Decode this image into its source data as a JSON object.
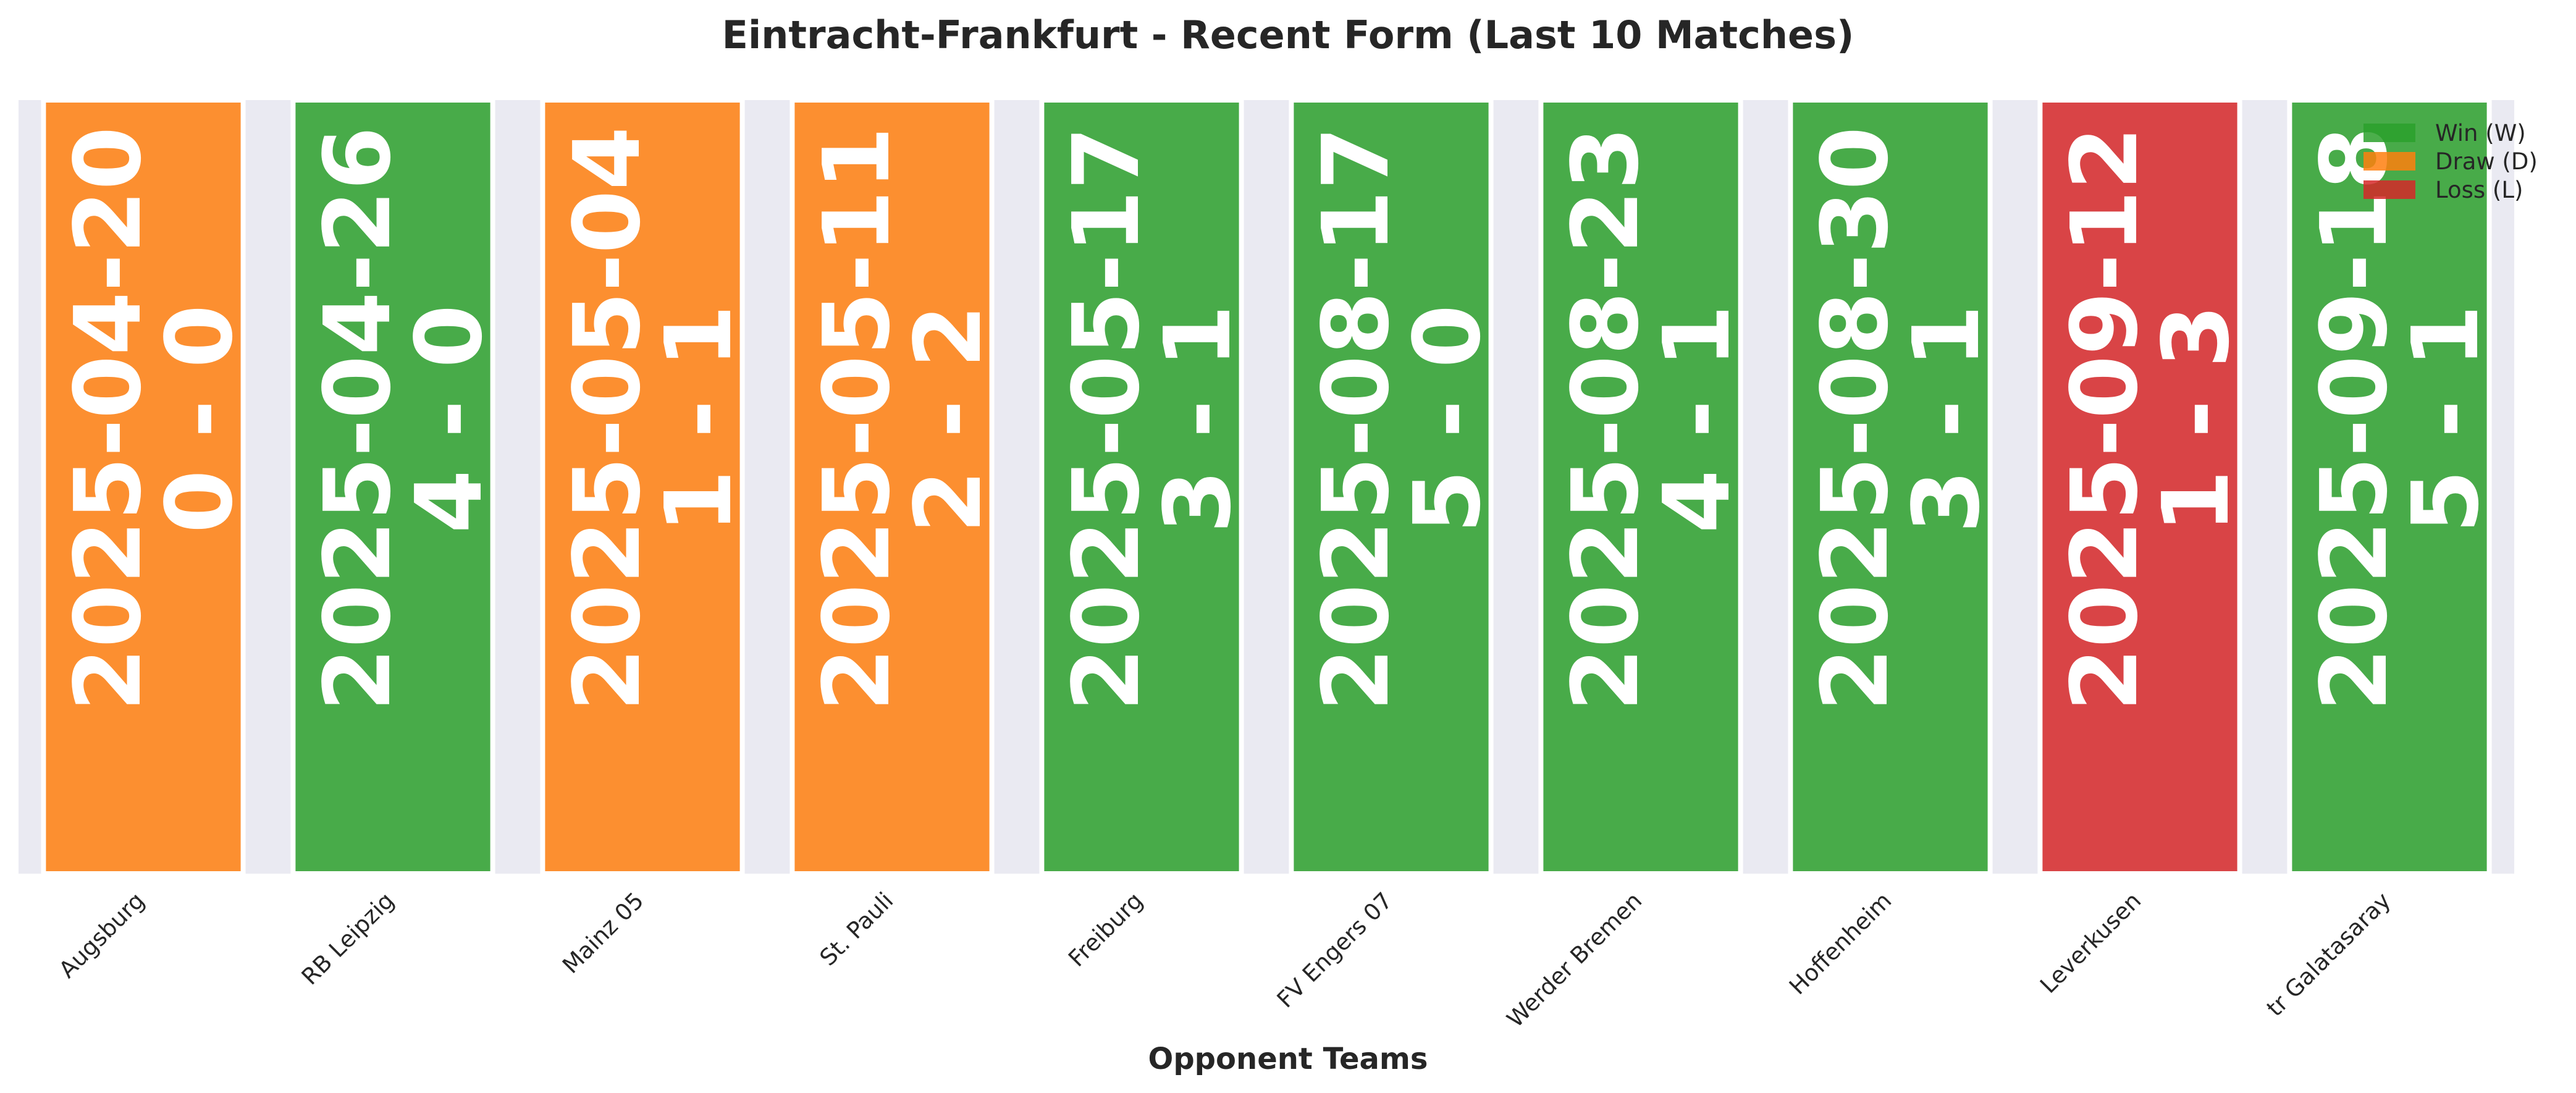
{
  "chart_data": {
    "type": "bar",
    "title": "Eintracht-Frankfurt - Recent Form (Last 10 Matches)",
    "xlabel": "Opponent Teams",
    "ylabel": "",
    "ylim": [
      0,
      1
    ],
    "grid": false,
    "legend_position": "top-right",
    "categories": [
      "Augsburg",
      "RB Leipzig",
      "Mainz 05",
      "St. Pauli",
      "Freiburg",
      "FV Engers 07",
      "Werder Bremen",
      "Hoffenheim",
      "Leverkusen",
      "tr Galatasaray"
    ],
    "values": [
      1,
      1,
      1,
      1,
      1,
      1,
      1,
      1,
      1,
      1
    ],
    "results": [
      "D",
      "W",
      "D",
      "D",
      "W",
      "W",
      "W",
      "W",
      "L",
      "W"
    ],
    "dates": [
      "2025-04-20",
      "2025-04-26",
      "2025-05-04",
      "2025-05-11",
      "2025-05-17",
      "2025-08-17",
      "2025-08-23",
      "2025-08-30",
      "2025-09-12",
      "2025-09-18"
    ],
    "scores": [
      "0 - 0",
      "4 - 0",
      "1 - 1",
      "2 - 2",
      "3 - 1",
      "5 - 0",
      "4 - 1",
      "3 - 1",
      "1 - 3",
      "5 - 1"
    ],
    "legend": [
      {
        "key": "W",
        "label": "Win (W)",
        "color": "#2ca02c"
      },
      {
        "key": "D",
        "label": "Draw (D)",
        "color": "#ff7f0e"
      },
      {
        "key": "L",
        "label": "Loss (L)",
        "color": "#d62728"
      }
    ],
    "colors": {
      "plot_background": "#eaeaf2"
    }
  }
}
